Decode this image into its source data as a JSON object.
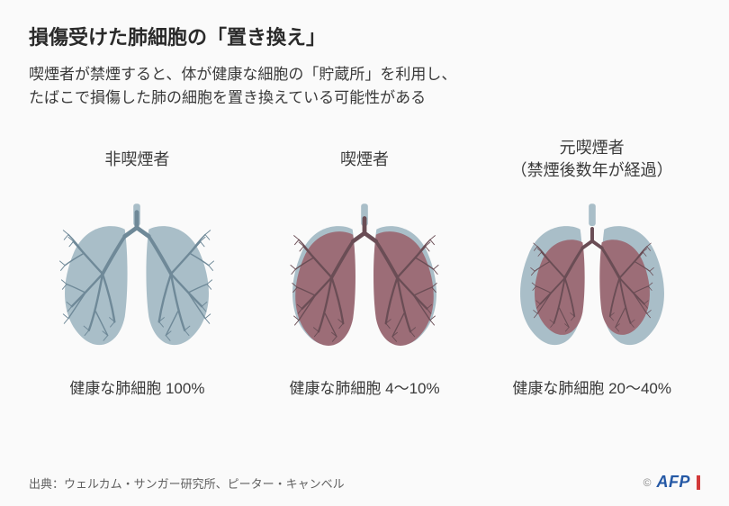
{
  "title": "損傷受けた肺細胞の「置き換え」",
  "subtitle": "喫煙者が禁煙すると、体が健康な細胞の「貯蔵所」を利用し、\nたばこで損傷した肺の細胞を置き換えている可能性がある",
  "panels": [
    {
      "label": "非喫煙者",
      "stat": "健康な肺細胞 100%",
      "outer_fill": "#a9bec8",
      "inner_fill": "#a9bec8",
      "bronchi_color": "#6f8998",
      "inner_scale": 1.0
    },
    {
      "label": "喫煙者",
      "stat": "健康な肺細胞 4〜10%",
      "outer_fill": "#a9bec8",
      "inner_fill": "#9c6d77",
      "bronchi_color": "#6a4d55",
      "inner_scale": 0.96
    },
    {
      "label": "元喫煙者\n（禁煙後数年が経過）",
      "stat": "健康な肺細胞 20〜40%",
      "outer_fill": "#a9bec8",
      "inner_fill": "#9c6d77",
      "bronchi_color": "#6a4d55",
      "inner_scale": 0.8
    }
  ],
  "source": "出典：ウェルカム・サンガー研究所、ピーター・キャンベル",
  "logo": {
    "copy": "©",
    "text": "AFP"
  }
}
